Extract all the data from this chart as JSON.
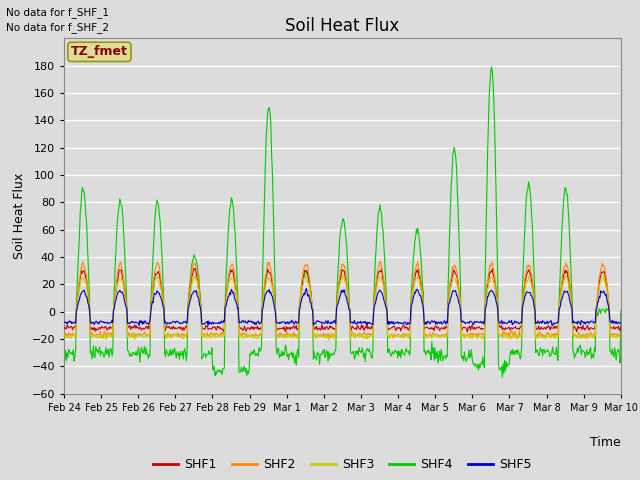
{
  "title": "Soil Heat Flux",
  "ylabel": "Soil Heat Flux",
  "xlabel": "Time",
  "ylim": [
    -60,
    200
  ],
  "yticks": [
    -60,
    -40,
    -20,
    0,
    20,
    40,
    60,
    80,
    100,
    120,
    140,
    160,
    180
  ],
  "background_color": "#dcdcdc",
  "plot_bg_color": "#dcdcdc",
  "grid_color": "white",
  "colors": {
    "SHF1": "#cc0000",
    "SHF2": "#ff8800",
    "SHF3": "#cccc00",
    "SHF4": "#00cc00",
    "SHF5": "#0000cc"
  },
  "no_data_text": [
    "No data for f_SHF_1",
    "No data for f_SHF_2"
  ],
  "legend_box_text": "TZ_fmet",
  "legend_box_color": "#dddd99",
  "legend_box_text_color": "#880000",
  "legend_box_edge_color": "#999900",
  "xtick_labels": [
    "Feb 24",
    "Feb 25",
    "Feb 26",
    "Feb 27",
    "Feb 28",
    "Feb 29",
    "Mar 1",
    "Mar 2",
    "Mar 3",
    "Mar 4",
    "Mar 5",
    "Mar 6",
    "Mar 7",
    "Mar 8",
    "Mar 9",
    "Mar 10"
  ],
  "n_days": 15,
  "title_fontsize": 12,
  "axis_label_fontsize": 9,
  "tick_fontsize": 8,
  "legend_fontsize": 9
}
